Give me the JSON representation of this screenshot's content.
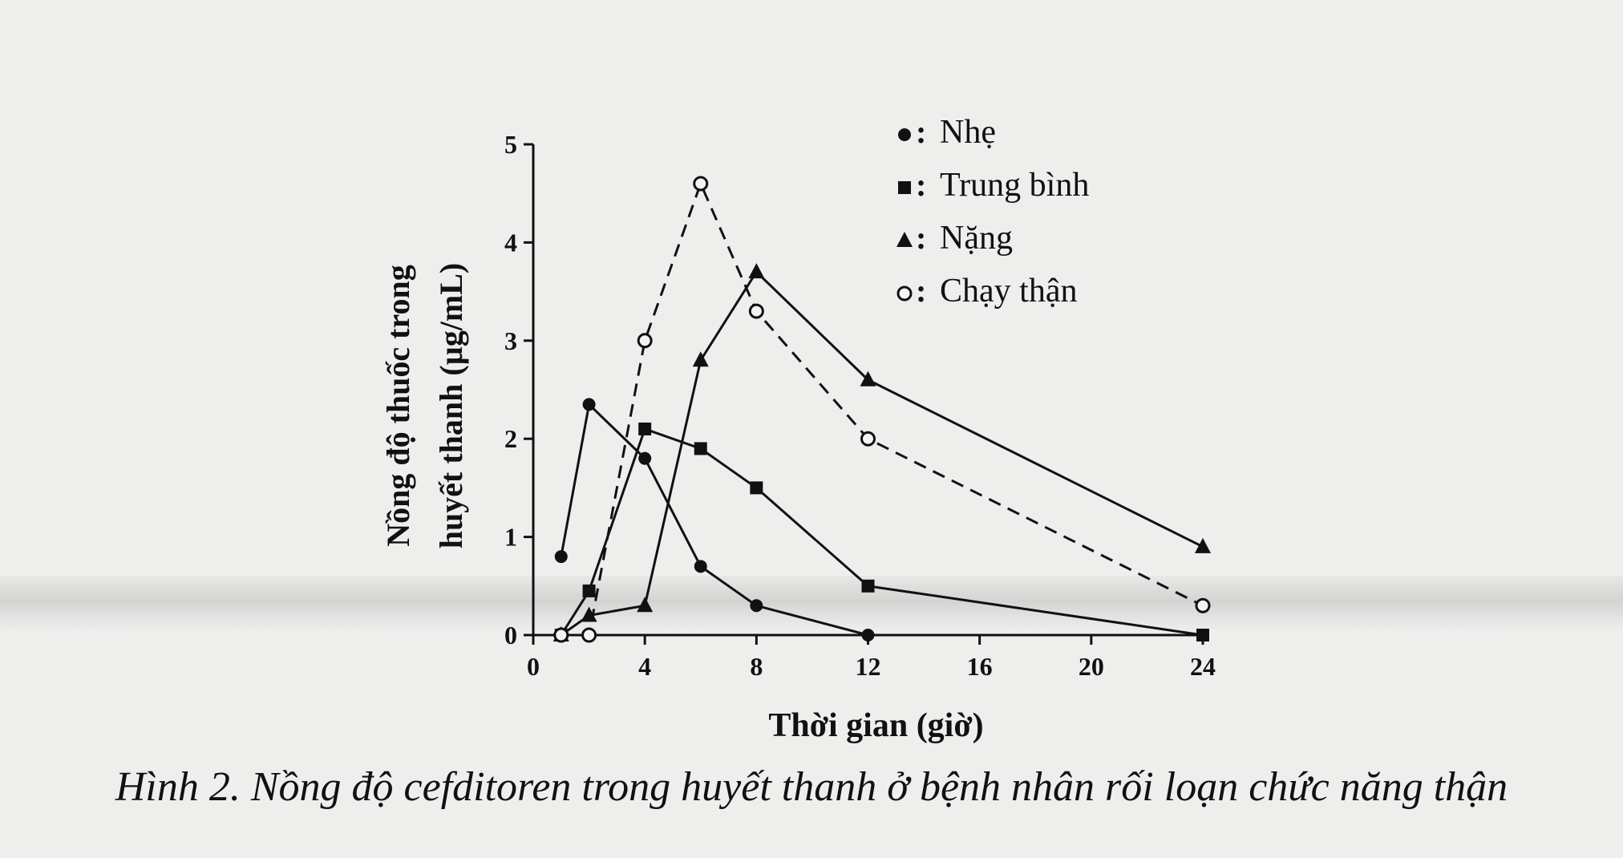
{
  "chart_data": {
    "type": "line",
    "xlabel": "Thời gian (giờ)",
    "ylabel_lines": [
      "Nồng độ thuốc trong",
      "huyết thanh (µg/mL)"
    ],
    "xticks": [
      "0",
      "4",
      "8",
      "12",
      "16",
      "20",
      "24"
    ],
    "yticks": [
      "0",
      "1",
      "2",
      "3",
      "4",
      "5"
    ],
    "xlim": [
      0,
      24
    ],
    "ylim": [
      0,
      5
    ],
    "legend_position": "top-right",
    "series": [
      {
        "name": "Nhẹ",
        "marker": "circle",
        "style": "solid",
        "x": [
          1,
          2,
          4,
          6,
          8,
          12,
          24
        ],
        "y": [
          0.8,
          2.35,
          1.8,
          0.7,
          0.3,
          0.0,
          0.0
        ]
      },
      {
        "name": "Trung bình",
        "marker": "square",
        "style": "solid",
        "x": [
          1,
          2,
          4,
          6,
          8,
          12,
          24
        ],
        "y": [
          0.0,
          0.45,
          2.1,
          1.9,
          1.5,
          0.5,
          0.0
        ]
      },
      {
        "name": "Nặng",
        "marker": "triangle",
        "style": "solid",
        "x": [
          1,
          2,
          4,
          6,
          8,
          12,
          24
        ],
        "y": [
          0.0,
          0.2,
          0.3,
          2.8,
          3.7,
          2.6,
          0.9
        ]
      },
      {
        "name": "Chạy thận",
        "marker": "open-circle",
        "style": "dashed",
        "x": [
          1,
          2,
          4,
          6,
          8,
          12,
          24
        ],
        "y": [
          0.0,
          0.0,
          3.0,
          4.6,
          3.3,
          2.0,
          0.3
        ]
      }
    ]
  },
  "caption": "Hình 2. Nồng độ cefditoren trong huyết thanh ở bệnh nhân rối loạn chức năng thận",
  "colors": {
    "ink": "#111111",
    "background": "#eeeeec"
  }
}
